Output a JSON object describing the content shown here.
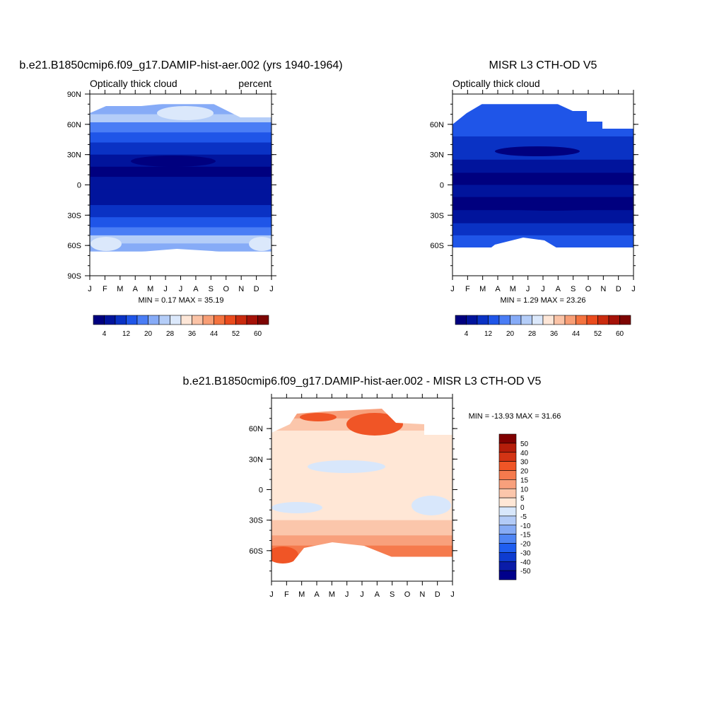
{
  "colors": {
    "seq": [
      "#00007f",
      "#01149c",
      "#0a32c4",
      "#1f55e8",
      "#4a7df5",
      "#86abf7",
      "#b4cdf8",
      "#dbe8fb",
      "#fde6d7",
      "#fbc3a6",
      "#f89e75",
      "#f4733f",
      "#ea4b1d",
      "#ca2b0e",
      "#a51208",
      "#7d0503"
    ],
    "diff": [
      "#00008b",
      "#0a1ca8",
      "#0e3cd0",
      "#1f5ef0",
      "#4f85f4",
      "#86abf5",
      "#b3cbf7",
      "#d8e7fb",
      "#ffe7d6",
      "#fbc6ab",
      "#f8a07c",
      "#f57a4d",
      "#f05526",
      "#d33414",
      "#b51d0a",
      "#800000"
    ]
  },
  "months": [
    "J",
    "F",
    "M",
    "A",
    "M",
    "J",
    "J",
    "A",
    "S",
    "O",
    "N",
    "D",
    "J"
  ],
  "chart_data": [
    {
      "type": "heatmap",
      "title": "b.e21.B1850cmip6.f09_g17.DAMIP-hist-aer.002 (yrs 1940-1964)",
      "left_label": "Optically thick cloud",
      "right_label": "percent",
      "x_ticks": [
        "J",
        "F",
        "M",
        "A",
        "M",
        "J",
        "J",
        "A",
        "S",
        "O",
        "N",
        "D",
        "J"
      ],
      "y_ticks": [
        "90N",
        "60N",
        "30N",
        "0",
        "30S",
        "60S",
        "90S"
      ],
      "ylim": [
        -90,
        90
      ],
      "stats": "MIN =   0.17 MAX =  35.19",
      "min": 0.17,
      "max": 35.19,
      "colorbar_labels": [
        "4",
        "12",
        "20",
        "28",
        "36",
        "44",
        "52",
        "60"
      ],
      "colorbar_levels": [
        2,
        4,
        6,
        8,
        10,
        12,
        14,
        16,
        18,
        20,
        24,
        28,
        32,
        36,
        40,
        44,
        48,
        52,
        56,
        60
      ],
      "valid_lat": [
        -76,
        79
      ]
    },
    {
      "type": "heatmap",
      "title": "MISR L3 CTH-OD V5",
      "left_label": "Optically thick cloud",
      "right_label": "",
      "x_ticks": [
        "J",
        "F",
        "M",
        "A",
        "M",
        "J",
        "J",
        "A",
        "S",
        "O",
        "N",
        "D",
        "J"
      ],
      "y_ticks": [
        "60N",
        "30N",
        "0",
        "30S",
        "60S"
      ],
      "ylim": [
        -90,
        90
      ],
      "stats": "MIN =   1.29 MAX =  23.26",
      "min": 1.29,
      "max": 23.26,
      "colorbar_labels": [
        "4",
        "12",
        "20",
        "28",
        "36",
        "44",
        "52",
        "60"
      ],
      "valid_lat": [
        -77,
        81
      ]
    },
    {
      "type": "heatmap",
      "title": "b.e21.B1850cmip6.f09_g17.DAMIP-hist-aer.002 - MISR L3 CTH-OD V5",
      "x_ticks": [
        "J",
        "F",
        "M",
        "A",
        "M",
        "J",
        "J",
        "A",
        "S",
        "O",
        "N",
        "D",
        "J"
      ],
      "y_ticks": [
        "60N",
        "30N",
        "0",
        "30S",
        "60S"
      ],
      "ylim": [
        -90,
        90
      ],
      "stats": "MIN = -13.93 MAX =  31.66",
      "min": -13.93,
      "max": 31.66,
      "colorbar_labels": [
        "50",
        "40",
        "30",
        "20",
        "15",
        "10",
        "5",
        "0",
        "-5",
        "-10",
        "-15",
        "-20",
        "-30",
        "-40",
        "-50"
      ],
      "valid_lat": [
        -76,
        81
      ]
    }
  ]
}
